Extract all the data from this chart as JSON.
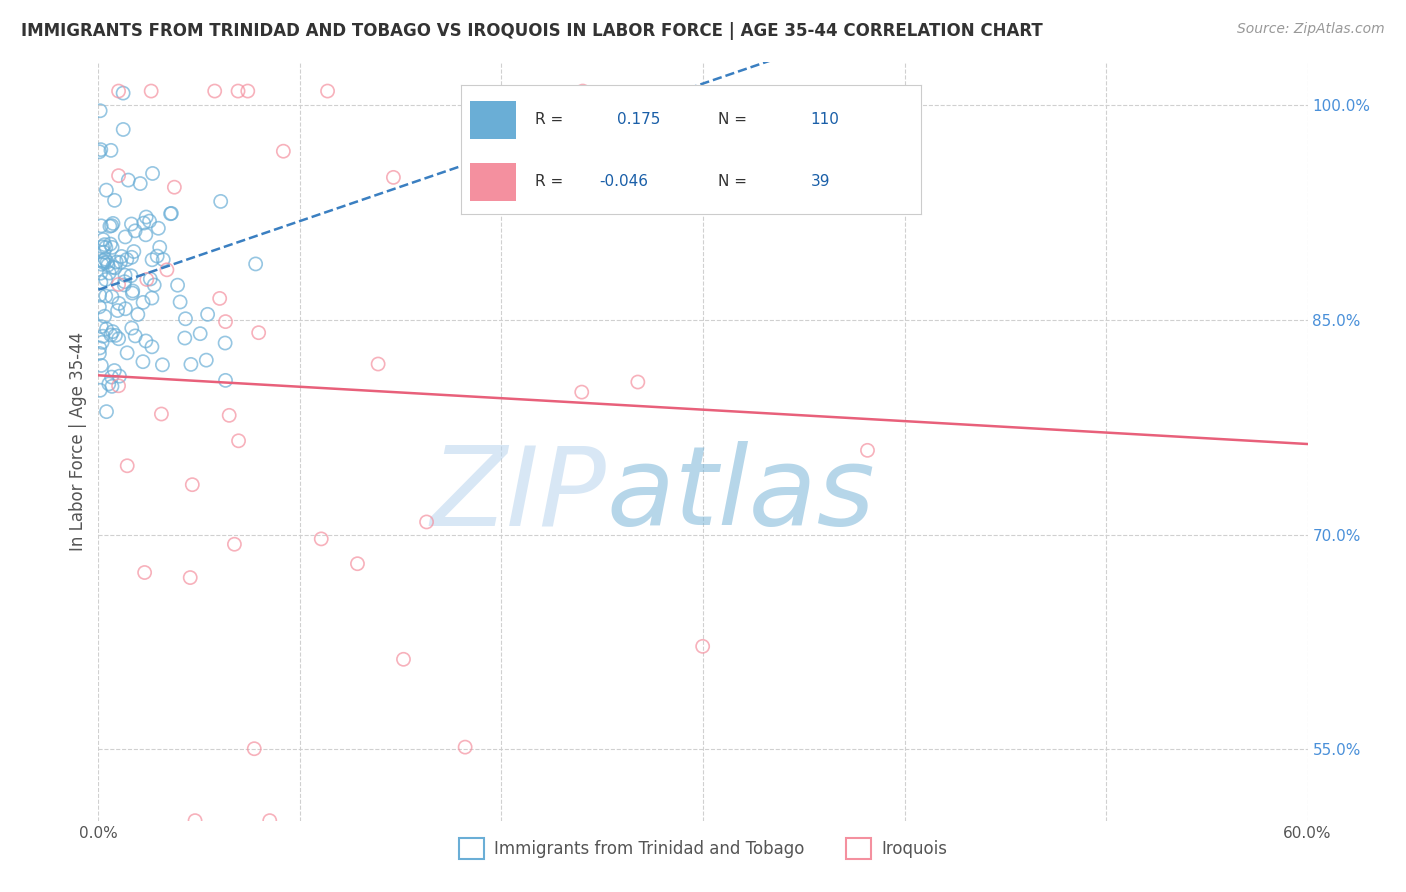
{
  "title": "IMMIGRANTS FROM TRINIDAD AND TOBAGO VS IROQUOIS IN LABOR FORCE | AGE 35-44 CORRELATION CHART",
  "source": "Source: ZipAtlas.com",
  "ylabel": "In Labor Force | Age 35-44",
  "xlim": [
    0.0,
    0.6
  ],
  "ylim": [
    0.5,
    1.03
  ],
  "xticks": [
    0.0,
    0.1,
    0.2,
    0.3,
    0.4,
    0.5,
    0.6
  ],
  "xticklabels": [
    "0.0%",
    "",
    "",
    "",
    "",
    "",
    "60.0%"
  ],
  "ytick_positions": [
    0.55,
    0.7,
    0.85,
    1.0
  ],
  "ytick_labels": [
    "55.0%",
    "70.0%",
    "85.0%",
    "100.0%"
  ],
  "blue_color": "#6aaed6",
  "pink_color": "#f4909f",
  "blue_R": 0.175,
  "blue_N": 110,
  "pink_R": -0.046,
  "pink_N": 39,
  "legend_label_blue": "Immigrants from Trinidad and Tobago",
  "legend_label_pink": "Iroquois",
  "watermark_zip": "ZIP",
  "watermark_atlas": "atlas",
  "grid_color": "#d0d0d0",
  "background_color": "#ffffff",
  "blue_seed": 42,
  "pink_seed": 7,
  "blue_trend_color": "#3a7fc1",
  "pink_trend_color": "#e8607a",
  "legend_R_N_color": "#1a5fa8",
  "legend_text_color": "#333333",
  "title_color": "#333333",
  "ylabel_color": "#555555",
  "yticklabel_color": "#4a90d9",
  "xticklabel_color": "#555555",
  "source_color": "#999999"
}
